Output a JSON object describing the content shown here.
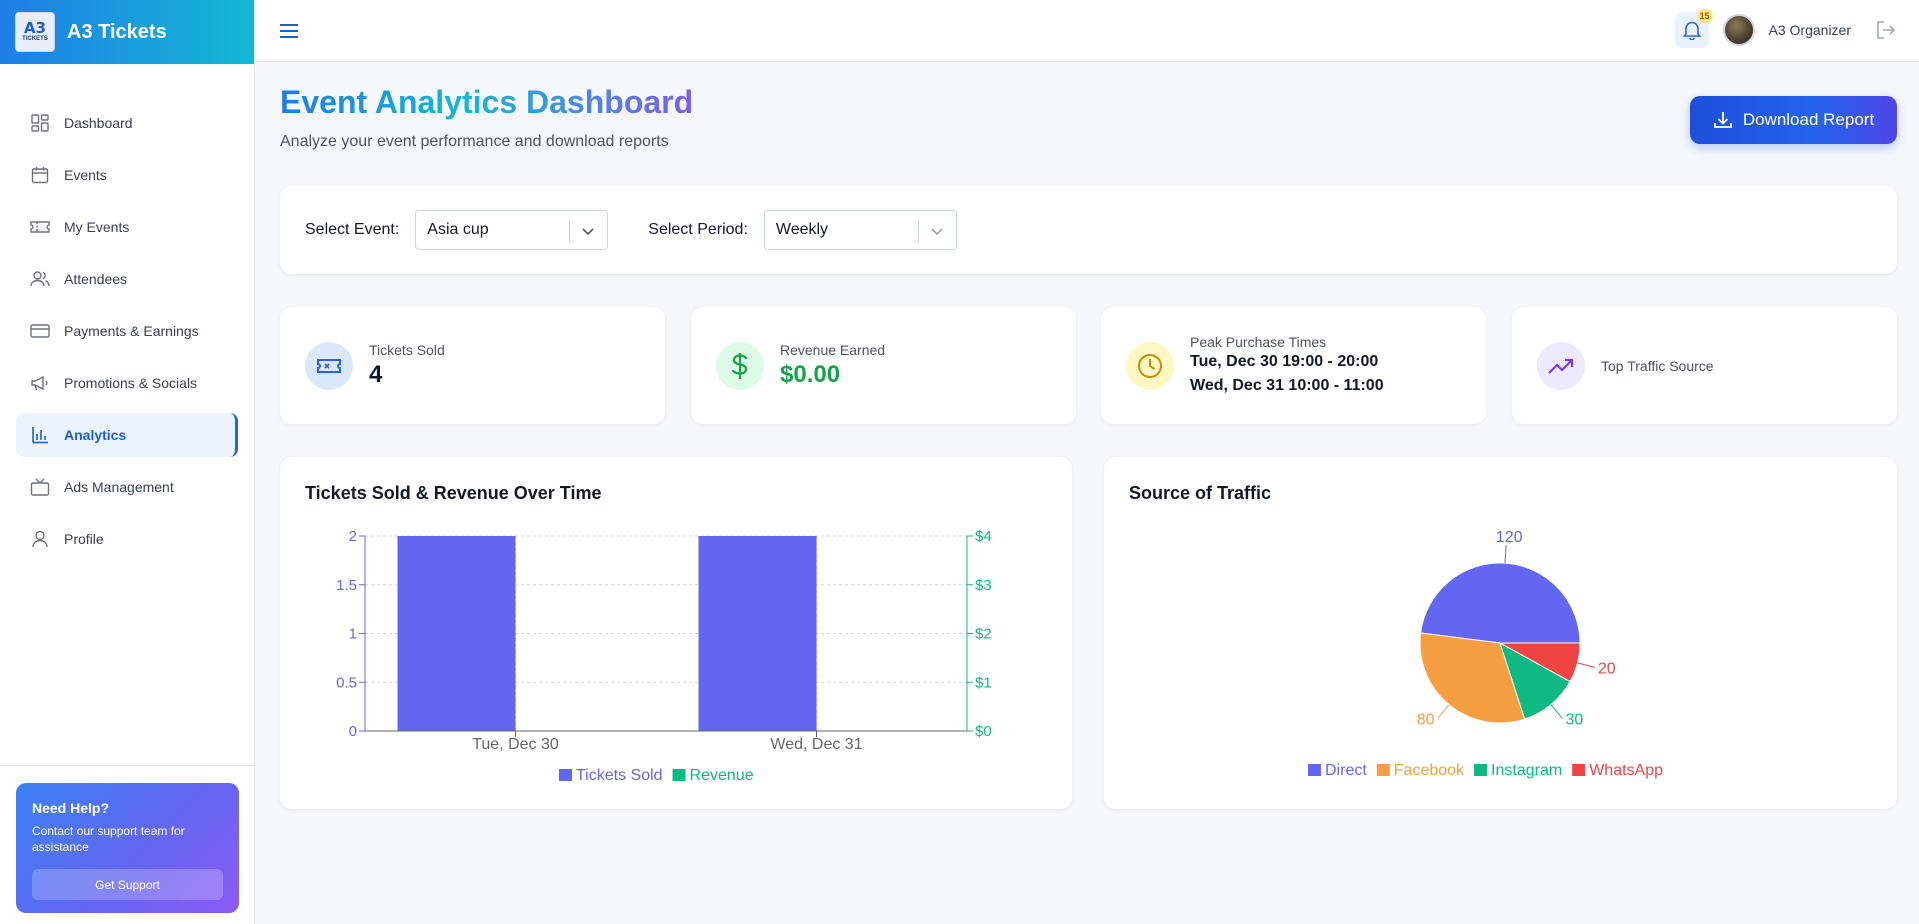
{
  "brand": {
    "logo_text": "A3",
    "logo_sub": "TICKETS",
    "name": "A3 Tickets"
  },
  "sidebar": {
    "items": [
      {
        "label": "Dashboard",
        "icon": "dashboard-icon"
      },
      {
        "label": "Events",
        "icon": "calendar-icon"
      },
      {
        "label": "My Events",
        "icon": "ticket-icon"
      },
      {
        "label": "Attendees",
        "icon": "users-icon"
      },
      {
        "label": "Payments & Earnings",
        "icon": "credit-card-icon"
      },
      {
        "label": "Promotions & Socials",
        "icon": "megaphone-icon"
      },
      {
        "label": "Analytics",
        "icon": "bar-chart-icon",
        "active": true
      },
      {
        "label": "Ads Management",
        "icon": "tv-icon"
      },
      {
        "label": "Profile",
        "icon": "user-icon"
      }
    ],
    "help": {
      "title": "Need Help?",
      "text": "Contact our support team for assistance",
      "button": "Get Support"
    }
  },
  "topbar": {
    "notification_count": "15",
    "user_name": "A3 Organizer"
  },
  "page": {
    "title": "Event Analytics Dashboard",
    "subtitle": "Analyze your event performance and download reports",
    "download_label": "Download Report"
  },
  "filters": {
    "event_label": "Select Event:",
    "event_value": "Asia cup",
    "period_label": "Select Period:",
    "period_value": "Weekly"
  },
  "stats": {
    "tickets": {
      "label": "Tickets Sold",
      "value": "4"
    },
    "revenue": {
      "label": "Revenue Earned",
      "value": "$0.00"
    },
    "peak": {
      "label": "Peak Purchase Times",
      "line1": "Tue, Dec 30 19:00 - 20:00",
      "line2": "Wed, Dec 31 10:00 - 11:00"
    },
    "traffic": {
      "label": "Top Traffic Source"
    }
  },
  "colors": {
    "tickets": "#6366f1",
    "revenue": "#10b981",
    "direct": "#6366f1",
    "facebook": "#f59e42",
    "instagram": "#10b981",
    "whatsapp": "#ef4444"
  },
  "chart_data": [
    {
      "type": "bar",
      "title": "Tickets Sold & Revenue Over Time",
      "categories": [
        "Tue, Dec 30",
        "Wed, Dec 31"
      ],
      "series": [
        {
          "name": "Tickets Sold",
          "values": [
            2,
            2
          ],
          "axis": "left"
        },
        {
          "name": "Revenue",
          "values": [
            0,
            0
          ],
          "axis": "right"
        }
      ],
      "y_left": {
        "ticks": [
          "0",
          "0.5",
          "1",
          "1.5",
          "2"
        ],
        "ylim": [
          0,
          2
        ]
      },
      "y_right": {
        "ticks": [
          "$0",
          "$1",
          "$2",
          "$3",
          "$4"
        ],
        "ylim": [
          0,
          4
        ]
      },
      "grid": true,
      "legend": "bottom"
    },
    {
      "type": "pie",
      "title": "Source of Traffic",
      "labels": [
        "Direct",
        "Facebook",
        "Instagram",
        "WhatsApp"
      ],
      "values": [
        120,
        80,
        30,
        20
      ],
      "legend": "bottom"
    }
  ]
}
